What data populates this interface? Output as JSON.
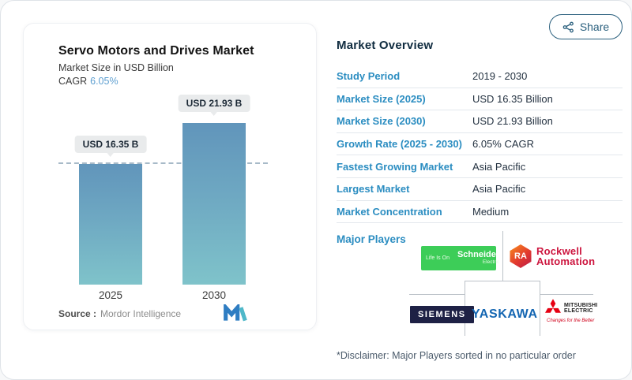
{
  "share": {
    "label": "Share"
  },
  "chart_card": {
    "title": "Servo Motors and Drives Market",
    "subtitle": "Market Size in USD Billion",
    "cagr_label": "CAGR",
    "cagr_value": "6.05%",
    "source_label": "Source :",
    "source_value": "Mordor Intelligence"
  },
  "chart_data": {
    "type": "bar",
    "categories": [
      "2025",
      "2030"
    ],
    "values": [
      16.35,
      21.93
    ],
    "bar_labels": [
      "USD 16.35 B",
      "USD 21.93 B"
    ],
    "title": "Servo Motors and Drives Market",
    "ylabel": "Market Size in USD Billion",
    "reference_line_value": 16.35,
    "grid": false,
    "colors": {
      "bar_gradient_top": "#6195bb",
      "bar_gradient_bottom": "#7fc3ca",
      "label_pill_bg": "#e9ebec",
      "reference_line": "#a7bac8"
    }
  },
  "overview": {
    "heading": "Market Overview",
    "rows": [
      {
        "label": "Study Period",
        "value": "2019 - 2030"
      },
      {
        "label": "Market Size (2025)",
        "value": "USD 16.35 Billion"
      },
      {
        "label": "Market Size (2030)",
        "value": "USD 21.93 Billion"
      },
      {
        "label": "Growth Rate (2025 - 2030)",
        "value": "6.05% CAGR"
      },
      {
        "label": "Fastest Growing Market",
        "value": "Asia Pacific"
      },
      {
        "label": "Largest Market",
        "value": "Asia Pacific"
      },
      {
        "label": "Market Concentration",
        "value": "Medium"
      }
    ],
    "major_players_label": "Major Players",
    "disclaimer": "*Disclaimer: Major Players sorted in no particular order"
  },
  "logos": {
    "schneider": {
      "tagline": "Life Is On",
      "name": "Schneider",
      "sub": "Electric"
    },
    "rockwell": {
      "monogram": "RA",
      "line1": "Rockwell",
      "line2": "Automation"
    },
    "siemens": {
      "name": "SIEMENS"
    },
    "yaskawa": {
      "name": "YASKAWA"
    },
    "mitsubishi": {
      "line1": "MITSUBISHI",
      "line2": "ELECTRIC",
      "tagline": "Changes for the Better"
    }
  },
  "colors": {
    "accent_blue": "#2b8dc1",
    "heading_navy": "#0f2b3f",
    "cagr_blue": "#5e9fd0",
    "share_teal": "#2b607e"
  }
}
